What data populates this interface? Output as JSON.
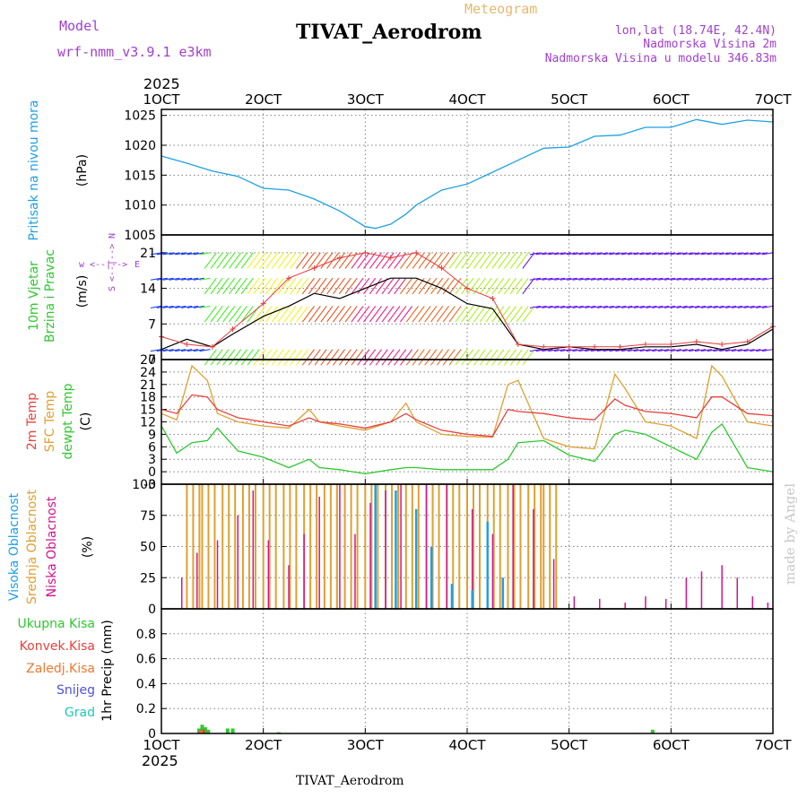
{
  "header": {
    "model_label": "Model",
    "model_value": "wrf-nmm_v3.9.1  e3km",
    "title": "TIVAT_Aerodrom",
    "meteogram_label": "Meteogram",
    "lonlat": "lon,lat (18.74E, 42.4N)",
    "altitude": "Nadmorska Visina 2m",
    "model_altitude": "Nadmorska Visina u modelu 346.83m",
    "year_top": "2025",
    "year_bottom": "2025",
    "footer_station": "TIVAT_Aerodrom",
    "credit": "made by Angel"
  },
  "colors": {
    "pressure": "#1ea0e6",
    "temp2m": "#e8413c",
    "sfc": "#e0a030",
    "dewpt": "#2ec82e",
    "speed_marker": "#e83c3c",
    "low_cloud": "#d4148c",
    "mid_cloud": "#e0a030",
    "high_cloud": "#1ea0e6",
    "total_precip": "#2ec82e",
    "conv_precip": "#e83c3c",
    "frozen_precip": "#f07830",
    "snow": "#5050e0",
    "hail": "#20c8b4",
    "label_purple": "#a040d0",
    "grid": "#808080"
  },
  "x_axis": {
    "labels": [
      "1OCT",
      "2OCT",
      "3OCT",
      "4OCT",
      "5OCT",
      "6OCT",
      "7OCT"
    ],
    "days": [
      0,
      1,
      2,
      3,
      4,
      5,
      6
    ]
  },
  "chart_data": [
    {
      "type": "line",
      "title": "Pritisak na nivou mora",
      "ylabel": "(hPa)",
      "ylim": [
        1005,
        1026
      ],
      "yticks": [
        "1005",
        "1010",
        "1015",
        "1020",
        "1025"
      ],
      "x": [
        0,
        0.25,
        0.5,
        0.75,
        1.0,
        1.25,
        1.5,
        1.75,
        2.0,
        2.1,
        2.25,
        2.4,
        2.5,
        2.75,
        3.0,
        3.25,
        3.5,
        3.75,
        4.0,
        4.25,
        4.5,
        4.75,
        5.0,
        5.25,
        5.5,
        5.75,
        6.0
      ],
      "series": [
        {
          "name": "MSLP",
          "values": [
            1018.2,
            1017,
            1015.7,
            1014.8,
            1012.8,
            1012.5,
            1011,
            1009,
            1006.4,
            1006.1,
            1006.8,
            1008.5,
            1010,
            1012.5,
            1013.5,
            1015.5,
            1017.5,
            1019.5,
            1019.7,
            1021.5,
            1021.7,
            1023,
            1023,
            1024.3,
            1023.5,
            1024.2,
            1023.9
          ]
        }
      ]
    },
    {
      "type": "line",
      "title": "10m Vjetar Brzina i Pravac",
      "ylabel": "(m/s)",
      "ylim": [
        0,
        24.5
      ],
      "yticks": [
        "0",
        "7",
        "14",
        "21"
      ],
      "direction_labels": [
        "w",
        "<--|-->",
        "E",
        "S",
        "<--|-->",
        "N"
      ],
      "x": [
        0,
        0.25,
        0.5,
        0.7,
        1.0,
        1.25,
        1.5,
        1.75,
        2.0,
        2.25,
        2.5,
        2.75,
        3.0,
        3.25,
        3.5,
        3.75,
        4.0,
        4.25,
        4.5,
        4.75,
        5.0,
        5.25,
        5.5,
        5.75,
        6.0
      ],
      "series": [
        {
          "name": "Wind speed",
          "values": [
            2,
            4,
            2.5,
            5,
            8.5,
            10.5,
            13,
            12,
            14,
            16,
            16,
            14,
            11,
            10,
            3,
            2,
            2.5,
            2,
            2,
            2.5,
            2.5,
            3,
            2,
            3,
            6
          ]
        },
        {
          "name": "Gust",
          "values": [
            4.5,
            3,
            2.5,
            6,
            11,
            16,
            18,
            20,
            21,
            20,
            21,
            18,
            14,
            12,
            3,
            2.5,
            2.5,
            2.5,
            2.5,
            3,
            3,
            3.5,
            3,
            3.5,
            6.5
          ]
        }
      ]
    },
    {
      "type": "line",
      "title": "2m Temp / SFC Temp / dewpt Temp",
      "ylabel": "(C)",
      "ylim": [
        -3,
        27
      ],
      "yticks": [
        "-3",
        "0",
        "3",
        "6",
        "9",
        "12",
        "15",
        "18",
        "21",
        "24",
        "27"
      ],
      "x": [
        0,
        0.15,
        0.3,
        0.45,
        0.55,
        0.75,
        1.0,
        1.25,
        1.45,
        1.55,
        1.75,
        2.0,
        2.25,
        2.4,
        2.5,
        2.75,
        3.0,
        3.25,
        3.4,
        3.5,
        3.75,
        4.0,
        4.25,
        4.45,
        4.55,
        4.75,
        5.0,
        5.25,
        5.4,
        5.5,
        5.75,
        6.0
      ],
      "series": [
        {
          "name": "2m Temp",
          "values": [
            15,
            14,
            18.5,
            18,
            15,
            13,
            12,
            11,
            13,
            12,
            11.5,
            10.5,
            12,
            14,
            12.5,
            10,
            9,
            8.5,
            15,
            14.5,
            14,
            13,
            12.5,
            17.5,
            16,
            14.5,
            14,
            13,
            18,
            18,
            14,
            13.5
          ]
        },
        {
          "name": "SFC Temp",
          "values": [
            14,
            12.5,
            25.5,
            22,
            14,
            12,
            11,
            10.5,
            15,
            12,
            11,
            10,
            12,
            16.5,
            12,
            9,
            8.5,
            8.3,
            21,
            22,
            8,
            6,
            5.5,
            23.5,
            20,
            12,
            11,
            8,
            25.5,
            23,
            12,
            11
          ]
        },
        {
          "name": "dewpt Temp",
          "values": [
            11,
            4.5,
            7,
            7.5,
            10.5,
            5,
            3.5,
            1,
            3,
            1,
            0.5,
            -0.5,
            0.5,
            1,
            1,
            0.5,
            0.5,
            0.5,
            3,
            7,
            7.5,
            4,
            2.5,
            9,
            10,
            9,
            6,
            3,
            9.5,
            11.5,
            1,
            0
          ]
        }
      ]
    },
    {
      "type": "bar",
      "title": "Visoka / Srednja / Niska Oblacnost",
      "ylabel": "(%)",
      "ylim": [
        0,
        100
      ],
      "yticks": [
        "0",
        "25",
        "50",
        "75",
        "100"
      ],
      "series": [
        {
          "name": "Niska Oblacnost",
          "x": [
            0.2,
            0.35,
            0.55,
            0.75,
            0.9,
            1.05,
            1.25,
            1.4,
            1.55,
            1.75,
            1.9,
            2.05,
            2.2,
            2.35,
            2.6,
            2.8,
            3.05,
            3.25,
            3.45,
            3.65,
            3.85,
            4.05,
            4.3,
            4.55,
            4.75,
            4.95,
            5.15,
            5.3,
            5.5,
            5.65,
            5.8,
            5.95
          ],
          "values": [
            25,
            45,
            55,
            75,
            95,
            55,
            35,
            60,
            90,
            100,
            60,
            85,
            95,
            100,
            100,
            100,
            80,
            60,
            100,
            80,
            40,
            10,
            8,
            5,
            10,
            8,
            25,
            30,
            35,
            25,
            10,
            5
          ]
        },
        {
          "name": "Srednja Oblacnost",
          "x": [
            0.25,
            0.4,
            0.6,
            0.8,
            1.0,
            1.2,
            1.4,
            1.6,
            1.8,
            2.0,
            2.2,
            2.4,
            2.6,
            2.8,
            3.0,
            3.2,
            3.4,
            3.6,
            3.75
          ],
          "values": [
            100,
            100,
            100,
            100,
            100,
            100,
            100,
            100,
            100,
            100,
            100,
            100,
            100,
            100,
            100,
            100,
            100,
            100,
            100
          ]
        },
        {
          "name": "Visoka Oblacnost",
          "x": [
            2.1,
            2.3,
            2.5,
            2.65,
            2.85,
            3.05,
            3.2,
            3.35
          ],
          "values": [
            100,
            95,
            80,
            50,
            20,
            15,
            70,
            25
          ]
        }
      ]
    },
    {
      "type": "bar",
      "title": "1hr Precip",
      "ylabel": "1hr Precip (mm)",
      "ylim": [
        0,
        1.0
      ],
      "yticks": [
        "0",
        "0.2",
        "0.4",
        "0.6",
        "0.8"
      ],
      "legend": [
        "Ukupna Kisa",
        "Konvek.Kisa",
        "Zaledj.Kisa",
        "Snijeg",
        "Grad"
      ],
      "series": [
        {
          "name": "Ukupna Kisa",
          "x": [
            0.37,
            0.4,
            0.43,
            0.46,
            0.65,
            0.7,
            1.15,
            4.82
          ],
          "values": [
            0.04,
            0.07,
            0.05,
            0.03,
            0.04,
            0.04,
            0.01,
            0.03
          ]
        },
        {
          "name": "Konvek.Kisa",
          "x": [
            0.38,
            0.41
          ],
          "values": [
            0.02,
            0.03
          ]
        },
        {
          "name": "Zaledj.Kisa",
          "x": [
            0.39
          ],
          "values": [
            0.02
          ]
        }
      ]
    }
  ]
}
